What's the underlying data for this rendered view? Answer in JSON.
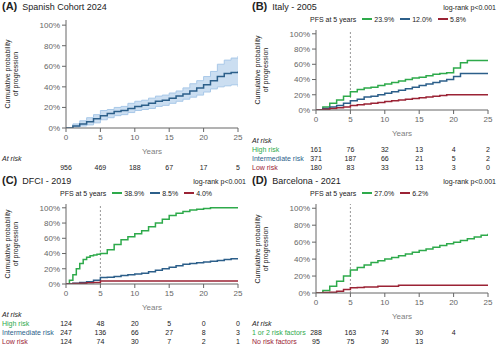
{
  "chart_data": [
    {
      "type": "step",
      "panel_label": "(A)",
      "title": "Spanish Cohort 2024",
      "xlabel": "Years",
      "ylabel": "Cumulative probability\nof progression",
      "xlim": [
        0,
        25
      ],
      "ylim": [
        0,
        1.05
      ],
      "xticks": [
        0,
        5,
        10,
        15,
        20,
        25
      ],
      "yticks": [
        {
          "value": 0,
          "label": "0%"
        },
        {
          "value": 0.2,
          "label": "20%"
        },
        {
          "value": 0.4,
          "label": "40%"
        },
        {
          "value": 0.6,
          "label": "60%"
        },
        {
          "value": 0.8,
          "label": "80%"
        },
        {
          "value": 1.0,
          "label": "100%"
        }
      ],
      "grid": false,
      "x": [
        0,
        1,
        2,
        3,
        4,
        5,
        6,
        7,
        8,
        9,
        10,
        11,
        12,
        13,
        14,
        15,
        16,
        17,
        18,
        19,
        20,
        21,
        22,
        23,
        24,
        25
      ],
      "series": [
        {
          "type": "band",
          "color": "#a8c8e8",
          "lower": [
            0,
            0.01,
            0.02,
            0.03,
            0.05,
            0.08,
            0.1,
            0.12,
            0.13,
            0.15,
            0.17,
            0.18,
            0.19,
            0.21,
            0.22,
            0.24,
            0.26,
            0.28,
            0.3,
            0.32,
            0.35,
            0.38,
            0.4,
            0.41,
            0.42,
            0.4
          ],
          "upper": [
            0,
            0.04,
            0.07,
            0.1,
            0.13,
            0.17,
            0.18,
            0.2,
            0.21,
            0.24,
            0.26,
            0.27,
            0.29,
            0.31,
            0.32,
            0.34,
            0.36,
            0.39,
            0.43,
            0.46,
            0.5,
            0.55,
            0.62,
            0.66,
            0.68,
            0.7
          ]
        },
        {
          "type": "line",
          "color": "#2c5f8a",
          "values": [
            0,
            0.02,
            0.04,
            0.06,
            0.09,
            0.12,
            0.14,
            0.16,
            0.17,
            0.19,
            0.21,
            0.22,
            0.24,
            0.26,
            0.27,
            0.29,
            0.31,
            0.33,
            0.36,
            0.39,
            0.42,
            0.46,
            0.5,
            0.53,
            0.54,
            0.55
          ]
        }
      ],
      "at_risk": {
        "title": "At risk",
        "times": [
          0,
          5,
          10,
          15,
          20,
          25
        ],
        "rows": [
          {
            "values": [
              956,
              469,
              188,
              67,
              17,
              5
            ]
          }
        ]
      }
    },
    {
      "type": "step",
      "panel_label": "(B)",
      "title": "Italy - 2005",
      "xlabel": "Years",
      "ylabel": "Cumulative probability\nof progression",
      "xlim": [
        0,
        25
      ],
      "ylim": [
        0,
        1.05
      ],
      "xticks": [
        0,
        5,
        10,
        15,
        20,
        25
      ],
      "yticks": [
        {
          "value": 0,
          "label": "0%"
        },
        {
          "value": 0.2,
          "label": "20%"
        },
        {
          "value": 0.4,
          "label": "40%"
        },
        {
          "value": 0.6,
          "label": "60%"
        },
        {
          "value": 0.8,
          "label": "80%"
        },
        {
          "value": 1.0,
          "label": "100%"
        }
      ],
      "grid": false,
      "reference_x": 5,
      "annotations": [
        "log-rank p<0.001"
      ],
      "legend": "top",
      "legend_title": "PFS at 5 years",
      "x": [
        0,
        1,
        2,
        3,
        4,
        5,
        6,
        7,
        8,
        9,
        10,
        11,
        12,
        13,
        14,
        15,
        16,
        17,
        18,
        19,
        20,
        21,
        22,
        23,
        24,
        25
      ],
      "series": [
        {
          "type": "line",
          "name": "23.9%",
          "color": "#2eaa4b",
          "values": [
            0,
            0.04,
            0.09,
            0.13,
            0.18,
            0.24,
            0.27,
            0.29,
            0.3,
            0.32,
            0.34,
            0.36,
            0.38,
            0.4,
            0.42,
            0.43,
            0.45,
            0.47,
            0.48,
            0.49,
            0.55,
            0.62,
            0.65,
            0.65,
            0.65,
            0.65
          ]
        },
        {
          "type": "line",
          "name": "12.0%",
          "color": "#2c5f8a",
          "values": [
            0,
            0.02,
            0.04,
            0.06,
            0.09,
            0.12,
            0.14,
            0.17,
            0.18,
            0.2,
            0.22,
            0.24,
            0.26,
            0.28,
            0.3,
            0.32,
            0.34,
            0.36,
            0.38,
            0.4,
            0.44,
            0.48,
            0.48,
            0.48,
            0.48,
            0.48
          ]
        },
        {
          "type": "line",
          "name": "5.8%",
          "color": "#9b2335",
          "values": [
            0,
            0.01,
            0.02,
            0.03,
            0.04,
            0.06,
            0.07,
            0.08,
            0.09,
            0.1,
            0.11,
            0.12,
            0.13,
            0.14,
            0.15,
            0.16,
            0.17,
            0.18,
            0.19,
            0.2,
            0.2,
            0.2,
            0.2,
            0.2,
            0.2,
            0.2
          ]
        }
      ],
      "at_risk": {
        "title": "At risk",
        "times": [
          0,
          5,
          10,
          15,
          20,
          25
        ],
        "rows": [
          {
            "label": "High risk",
            "color": "#2eaa4b",
            "values": [
              161,
              76,
              32,
              13,
              4,
              2
            ]
          },
          {
            "label": "Intermediate risk",
            "color": "#2c5f8a",
            "values": [
              371,
              187,
              66,
              21,
              5,
              2
            ]
          },
          {
            "label": "Low risk",
            "color": "#9b2335",
            "values": [
              180,
              83,
              33,
              13,
              3,
              0
            ]
          }
        ]
      }
    },
    {
      "type": "step",
      "panel_label": "(C)",
      "title": "DFCI - 2019",
      "xlabel": "Years",
      "ylabel": "Cumulative probability\nof progression",
      "xlim": [
        0,
        25
      ],
      "ylim": [
        0,
        1.05
      ],
      "xticks": [
        0,
        5,
        10,
        15,
        20,
        25
      ],
      "yticks": [
        {
          "value": 0,
          "label": "0%"
        },
        {
          "value": 0.2,
          "label": "20%"
        },
        {
          "value": 0.4,
          "label": "40%"
        },
        {
          "value": 0.6,
          "label": "60%"
        },
        {
          "value": 0.8,
          "label": "80%"
        },
        {
          "value": 1.0,
          "label": "100%"
        }
      ],
      "grid": false,
      "reference_x": 5,
      "annotations": [
        "log-rank p<0.001"
      ],
      "legend": "top",
      "legend_title": "PFS at 5 years",
      "series": [
        {
          "type": "line",
          "name": "38.9%",
          "color": "#2eaa4b",
          "x": [
            0,
            0.5,
            1,
            1.5,
            2,
            2.5,
            3,
            3.5,
            4,
            4.5,
            5,
            6,
            7,
            8,
            9,
            10,
            11,
            12,
            13,
            14,
            15,
            16,
            17,
            18,
            19,
            20,
            21,
            22,
            23,
            24,
            25
          ],
          "values": [
            0,
            0.05,
            0.12,
            0.2,
            0.27,
            0.32,
            0.35,
            0.37,
            0.38,
            0.39,
            0.4,
            0.45,
            0.52,
            0.58,
            0.62,
            0.66,
            0.7,
            0.75,
            0.8,
            0.85,
            0.9,
            0.93,
            0.95,
            0.97,
            0.98,
            0.99,
            1.0,
            1.0,
            1.0,
            1.0,
            1.0
          ]
        },
        {
          "type": "line",
          "name": "8.5%",
          "color": "#2c5f8a",
          "x": [
            0,
            1,
            2,
            3,
            4,
            5,
            6,
            7,
            8,
            9,
            10,
            11,
            12,
            13,
            14,
            15,
            16,
            17,
            18,
            19,
            20,
            21,
            22,
            23,
            24,
            25
          ],
          "values": [
            0,
            0.01,
            0.02,
            0.03,
            0.05,
            0.085,
            0.09,
            0.1,
            0.11,
            0.12,
            0.13,
            0.14,
            0.16,
            0.18,
            0.2,
            0.22,
            0.24,
            0.26,
            0.27,
            0.28,
            0.29,
            0.3,
            0.31,
            0.32,
            0.33,
            0.33
          ]
        },
        {
          "type": "line",
          "name": "4.0%",
          "color": "#9b2335",
          "x": [
            0,
            1,
            2,
            3,
            4,
            5,
            6,
            7,
            8,
            9,
            10,
            11,
            12,
            13,
            14,
            15,
            16,
            17,
            18,
            19,
            20,
            21,
            22,
            23,
            24,
            25
          ],
          "values": [
            0,
            0.005,
            0.01,
            0.015,
            0.02,
            0.04,
            0.04,
            0.04,
            0.04,
            0.04,
            0.04,
            0.04,
            0.04,
            0.04,
            0.04,
            0.04,
            0.04,
            0.04,
            0.04,
            0.04,
            0.04,
            0.04,
            0.04,
            0.04,
            0.04,
            0.04
          ]
        }
      ],
      "at_risk": {
        "title": "At risk",
        "times": [
          0,
          5,
          10,
          15,
          20,
          25
        ],
        "rows": [
          {
            "label": "High risk",
            "color": "#2eaa4b",
            "values": [
              124,
              48,
              20,
              5,
              0,
              0
            ]
          },
          {
            "label": "Intermediate risk",
            "color": "#2c5f8a",
            "values": [
              247,
              136,
              66,
              27,
              8,
              3
            ]
          },
          {
            "label": "Low risk",
            "color": "#9b2335",
            "values": [
              124,
              74,
              30,
              7,
              2,
              1
            ]
          }
        ]
      }
    },
    {
      "type": "step",
      "panel_label": "(D)",
      "title": "Barcelona - 2021",
      "xlabel": "Years",
      "ylabel": "Cumulative probability\nof progression",
      "xlim": [
        0,
        25
      ],
      "ylim": [
        0,
        1.05
      ],
      "xticks": [
        0,
        5,
        10,
        15,
        20,
        25
      ],
      "yticks": [
        {
          "value": 0,
          "label": "0%"
        },
        {
          "value": 0.2,
          "label": "20%"
        },
        {
          "value": 0.4,
          "label": "40%"
        },
        {
          "value": 0.6,
          "label": "60%"
        },
        {
          "value": 0.8,
          "label": "80%"
        },
        {
          "value": 1.0,
          "label": "100%"
        }
      ],
      "grid": false,
      "reference_x": 5,
      "annotations": [
        "log-rank p<0.001"
      ],
      "legend": "top",
      "legend_title": "PFS at 5 years",
      "x": [
        0,
        1,
        2,
        3,
        4,
        5,
        6,
        7,
        8,
        9,
        10,
        11,
        12,
        13,
        14,
        15,
        16,
        17,
        18,
        19,
        20,
        21,
        22,
        23,
        24,
        25
      ],
      "series": [
        {
          "type": "line",
          "name": "27.0%",
          "color": "#2eaa4b",
          "values": [
            0,
            0.03,
            0.08,
            0.14,
            0.2,
            0.27,
            0.3,
            0.33,
            0.36,
            0.38,
            0.4,
            0.42,
            0.44,
            0.46,
            0.48,
            0.5,
            0.52,
            0.54,
            0.56,
            0.58,
            0.6,
            0.62,
            0.64,
            0.66,
            0.68,
            0.7
          ]
        },
        {
          "type": "line",
          "name": "6.2%",
          "color": "#9b2335",
          "values": [
            0,
            0.005,
            0.01,
            0.02,
            0.04,
            0.062,
            0.065,
            0.07,
            0.07,
            0.08,
            0.08,
            0.08,
            0.09,
            0.09,
            0.09,
            0.09,
            0.09,
            0.09,
            0.09,
            0.09,
            0.09,
            0.09,
            0.09,
            0.09,
            0.09,
            0.09
          ]
        }
      ],
      "at_risk": {
        "title": "At risk",
        "times": [
          0,
          5,
          10,
          15,
          20,
          25
        ],
        "rows": [
          {
            "label": "1 or 2 risk factors",
            "color": "#2eaa4b",
            "values": [
              288,
              163,
              74,
              30,
              4,
              null
            ]
          },
          {
            "label": "No risk factors",
            "color": "#9b2335",
            "values": [
              95,
              75,
              30,
              13,
              null,
              null
            ]
          }
        ]
      }
    }
  ]
}
